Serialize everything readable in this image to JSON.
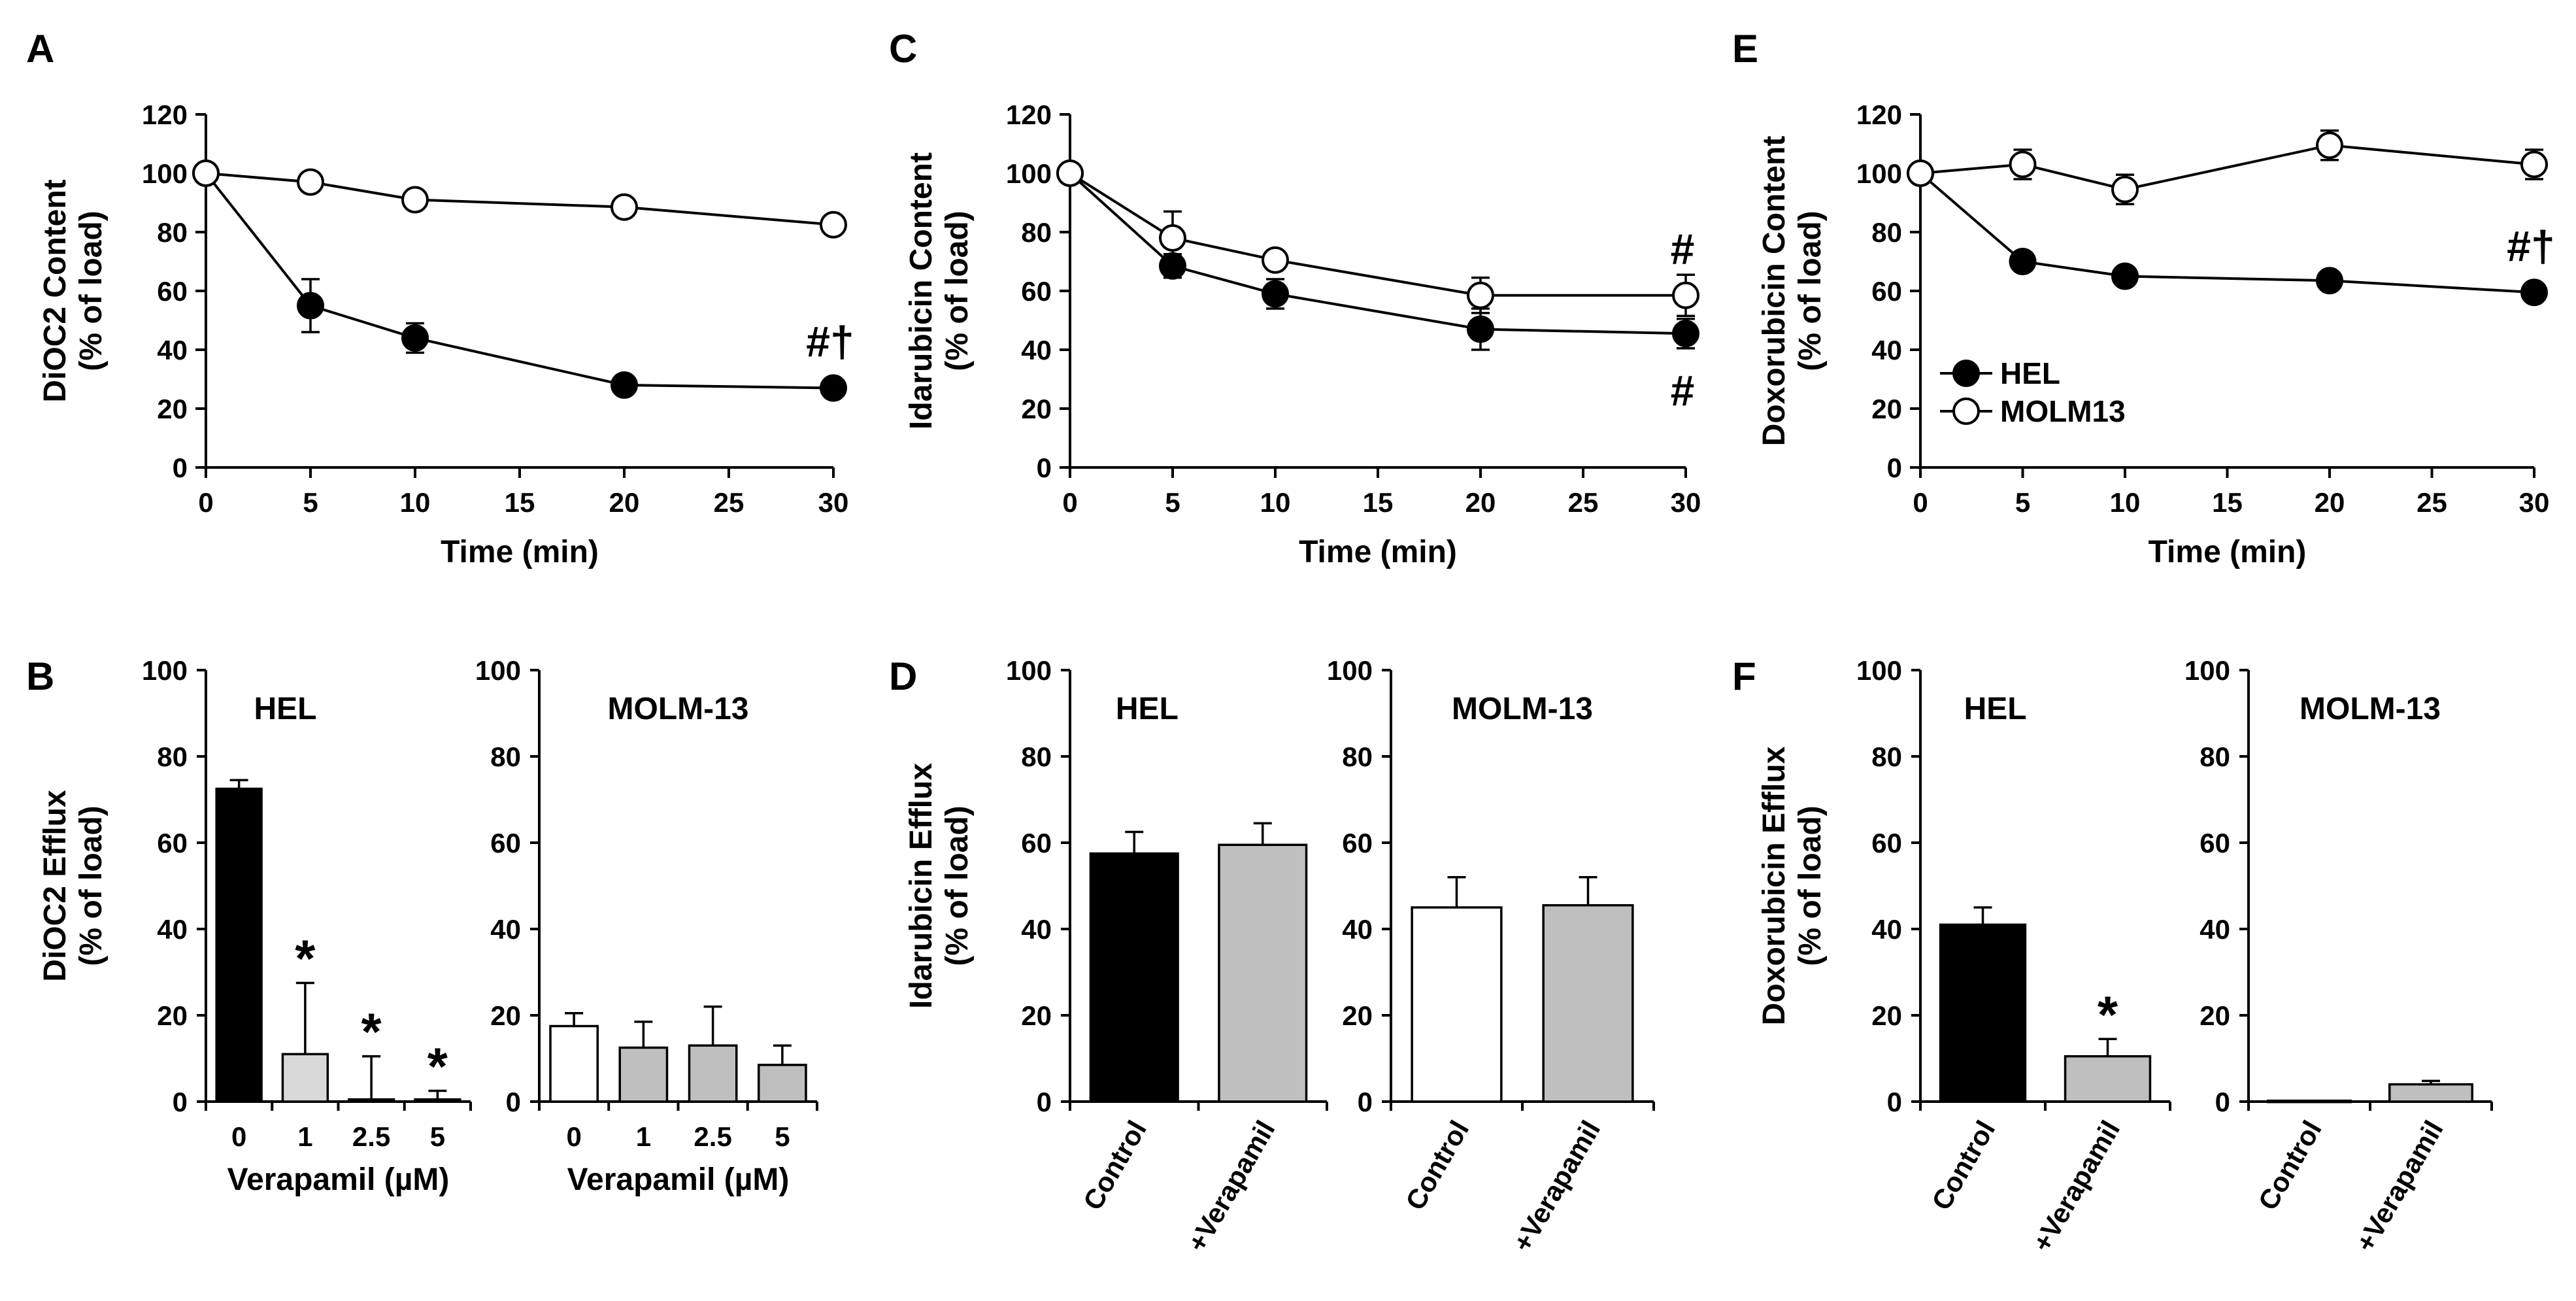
{
  "colors": {
    "hel_marker": "#000000",
    "molm_marker": "#ffffff",
    "bar_black": "#000000",
    "bar_light": "#d9d9d9",
    "bar_grey": "#bfbfbf",
    "bar_white": "#ffffff"
  },
  "chart_data": [
    {
      "id": "A",
      "panel_label": "A",
      "type": "line",
      "ylabel": [
        "DiOC2 Content",
        "(% of load)"
      ],
      "xlabel": "Time (min)",
      "ylim": [
        0,
        120
      ],
      "yticks": [
        "0",
        "20",
        "40",
        "60",
        "80",
        "100",
        "120"
      ],
      "xlim": [
        0,
        30
      ],
      "xticks": [
        "0",
        "5",
        "10",
        "15",
        "20",
        "25",
        "30"
      ],
      "series": [
        {
          "name": "HEL",
          "filled": true,
          "x": [
            0,
            5,
            10,
            20,
            30
          ],
          "y": [
            100,
            55,
            44,
            28,
            27
          ],
          "err": [
            0,
            9,
            5,
            1.5,
            1.5
          ]
        },
        {
          "name": "MOLM13",
          "filled": false,
          "x": [
            0,
            5,
            10,
            20,
            30
          ],
          "y": [
            100,
            97,
            91,
            88.5,
            82.5
          ],
          "err": [
            0,
            1,
            1,
            1,
            1
          ]
        }
      ],
      "annotations": [
        {
          "text": "#†",
          "x": 30,
          "y": 27,
          "where": "above"
        }
      ]
    },
    {
      "id": "C",
      "panel_label": "C",
      "type": "line",
      "ylabel": [
        "Idarubicin Content",
        "(% of load)"
      ],
      "xlabel": "Time (min)",
      "ylim": [
        0,
        120
      ],
      "yticks": [
        "0",
        "20",
        "40",
        "60",
        "80",
        "100",
        "120"
      ],
      "xlim": [
        0,
        30
      ],
      "xticks": [
        "0",
        "5",
        "10",
        "15",
        "20",
        "25",
        "30"
      ],
      "series": [
        {
          "name": "HEL",
          "filled": true,
          "x": [
            0,
            5,
            10,
            20,
            30
          ],
          "y": [
            100,
            68.5,
            59,
            47,
            45.5
          ],
          "err": [
            0,
            4,
            5,
            7,
            5
          ]
        },
        {
          "name": "MOLM13",
          "filled": false,
          "x": [
            0,
            5,
            10,
            20,
            30
          ],
          "y": [
            100,
            78,
            70.5,
            58.5,
            58.5
          ],
          "err": [
            0,
            9,
            2,
            6,
            7
          ]
        }
      ],
      "annotations": [
        {
          "text": "#",
          "x": 30,
          "y": 58.5,
          "where": "above"
        },
        {
          "text": "#",
          "x": 30,
          "y": 45.5,
          "where": "below"
        }
      ]
    },
    {
      "id": "E",
      "panel_label": "E",
      "type": "line",
      "ylabel": [
        "Doxorubicin Content",
        "(% of load)"
      ],
      "xlabel": "Time (min)",
      "ylim": [
        0,
        120
      ],
      "yticks": [
        "0",
        "20",
        "40",
        "60",
        "80",
        "100",
        "120"
      ],
      "xlim": [
        0,
        30
      ],
      "xticks": [
        "0",
        "5",
        "10",
        "15",
        "20",
        "25",
        "30"
      ],
      "series": [
        {
          "name": "HEL",
          "filled": true,
          "x": [
            0,
            5,
            10,
            20,
            30
          ],
          "y": [
            100,
            70,
            65,
            63.5,
            59.5
          ],
          "err": [
            0,
            1.5,
            1.5,
            1.5,
            3
          ]
        },
        {
          "name": "MOLM13",
          "filled": false,
          "x": [
            0,
            5,
            10,
            20,
            30
          ],
          "y": [
            100,
            103,
            94.5,
            109.5,
            103
          ],
          "err": [
            2,
            5,
            5,
            5,
            5
          ]
        }
      ],
      "legend": {
        "position": "bottom-left",
        "entries": [
          "HEL",
          "MOLM13"
        ]
      },
      "annotations": [
        {
          "text": "#†",
          "x": 30,
          "y": 59.5,
          "where": "above"
        }
      ]
    },
    {
      "id": "B1",
      "panel_label": "B",
      "type": "bar",
      "title": "HEL",
      "ylabel": [
        "DiOC2 Efflux",
        "(% of load)"
      ],
      "xlabel": "Verapamil (µM)",
      "ylim": [
        0,
        100
      ],
      "yticks": [
        "0",
        "20",
        "40",
        "60",
        "80",
        "100"
      ],
      "categories": [
        "0",
        "1",
        "2.5",
        "5"
      ],
      "values": [
        72.5,
        11,
        0.5,
        0.5
      ],
      "err": [
        2,
        16.5,
        10,
        2
      ],
      "fills": [
        "black",
        "light",
        "light",
        "light"
      ],
      "annotations": [
        "",
        "*",
        "*",
        "*"
      ]
    },
    {
      "id": "B2",
      "panel_label": "",
      "type": "bar",
      "title": "MOLM-13",
      "ylabel": [],
      "xlabel": "Verapamil (µM)",
      "ylim": [
        0,
        100
      ],
      "yticks": [
        "0",
        "20",
        "40",
        "60",
        "80",
        "100"
      ],
      "categories": [
        "0",
        "1",
        "2.5",
        "5"
      ],
      "values": [
        17.5,
        12.5,
        13,
        8.5
      ],
      "err": [
        3,
        6,
        9,
        4.5
      ],
      "fills": [
        "white",
        "grey",
        "grey",
        "grey"
      ],
      "annotations": [
        "",
        "",
        "",
        ""
      ]
    },
    {
      "id": "D1",
      "panel_label": "D",
      "type": "bar",
      "title": "HEL",
      "ylabel": [
        "Idarubicin Efflux",
        "(% of load)"
      ],
      "xlabel": "",
      "ylim": [
        0,
        100
      ],
      "yticks": [
        "0",
        "20",
        "40",
        "60",
        "80",
        "100"
      ],
      "categories": [
        "Control",
        "+Verapamil"
      ],
      "values": [
        57.5,
        59.5
      ],
      "err": [
        5,
        5
      ],
      "fills": [
        "black",
        "grey"
      ],
      "annotations": [
        "",
        ""
      ]
    },
    {
      "id": "D2",
      "panel_label": "",
      "type": "bar",
      "title": "MOLM-13",
      "ylabel": [],
      "xlabel": "",
      "ylim": [
        0,
        100
      ],
      "yticks": [
        "0",
        "20",
        "40",
        "60",
        "80",
        "100"
      ],
      "categories": [
        "Control",
        "+Verapamil"
      ],
      "values": [
        45,
        45.5
      ],
      "err": [
        7,
        6.5
      ],
      "fills": [
        "white",
        "grey"
      ],
      "annotations": [
        "",
        ""
      ]
    },
    {
      "id": "F1",
      "panel_label": "F",
      "type": "bar",
      "title": "HEL",
      "ylabel": [
        "Doxorubicin Efflux",
        "(% of load)"
      ],
      "xlabel": "",
      "ylim": [
        0,
        100
      ],
      "yticks": [
        "0",
        "20",
        "40",
        "60",
        "80",
        "100"
      ],
      "categories": [
        "Control",
        "+Verapamil"
      ],
      "values": [
        41,
        10.5
      ],
      "err": [
        4,
        4
      ],
      "fills": [
        "black",
        "grey"
      ],
      "annotations": [
        "",
        "*"
      ]
    },
    {
      "id": "F2",
      "panel_label": "",
      "type": "bar",
      "title": "MOLM-13",
      "ylabel": [],
      "xlabel": "",
      "ylim": [
        0,
        100
      ],
      "yticks": [
        "0",
        "20",
        "40",
        "60",
        "80",
        "100"
      ],
      "categories": [
        "Control",
        "+Verapamil"
      ],
      "values": [
        0.2,
        4
      ],
      "err": [
        0,
        0.8
      ],
      "fills": [
        "white",
        "grey"
      ],
      "annotations": [
        "",
        ""
      ]
    }
  ]
}
